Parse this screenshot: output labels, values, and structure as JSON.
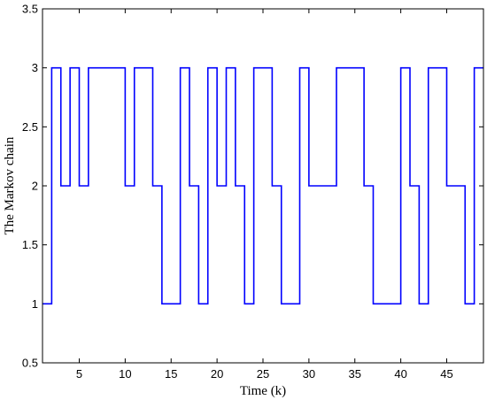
{
  "chart_data": {
    "type": "line",
    "step": "post",
    "xlabel": "Time (k)",
    "ylabel": "The Markov chain",
    "xlim": [
      1,
      49
    ],
    "ylim": [
      0.5,
      3.5
    ],
    "xticks": [
      5,
      10,
      15,
      20,
      25,
      30,
      35,
      40,
      45
    ],
    "yticks": [
      0.5,
      1,
      1.5,
      2,
      2.5,
      3,
      3.5
    ],
    "grid": false,
    "series": [
      {
        "color": "#0000ff",
        "x": [
          1,
          2,
          3,
          4,
          5,
          6,
          7,
          8,
          9,
          10,
          11,
          12,
          13,
          14,
          15,
          16,
          17,
          18,
          19,
          20,
          21,
          22,
          23,
          24,
          25,
          26,
          27,
          28,
          29,
          30,
          31,
          32,
          33,
          34,
          35,
          36,
          37,
          38,
          39,
          40,
          41,
          42,
          43,
          44,
          45,
          46,
          47,
          48,
          49
        ],
        "y": [
          1,
          3,
          2,
          3,
          2,
          3,
          3,
          3,
          3,
          2,
          3,
          3,
          2,
          1,
          1,
          3,
          2,
          1,
          3,
          2,
          3,
          2,
          1,
          3,
          3,
          2,
          1,
          1,
          3,
          2,
          2,
          2,
          3,
          3,
          3,
          2,
          1,
          1,
          1,
          3,
          2,
          1,
          3,
          3,
          2,
          2,
          1,
          3,
          3
        ]
      }
    ]
  }
}
